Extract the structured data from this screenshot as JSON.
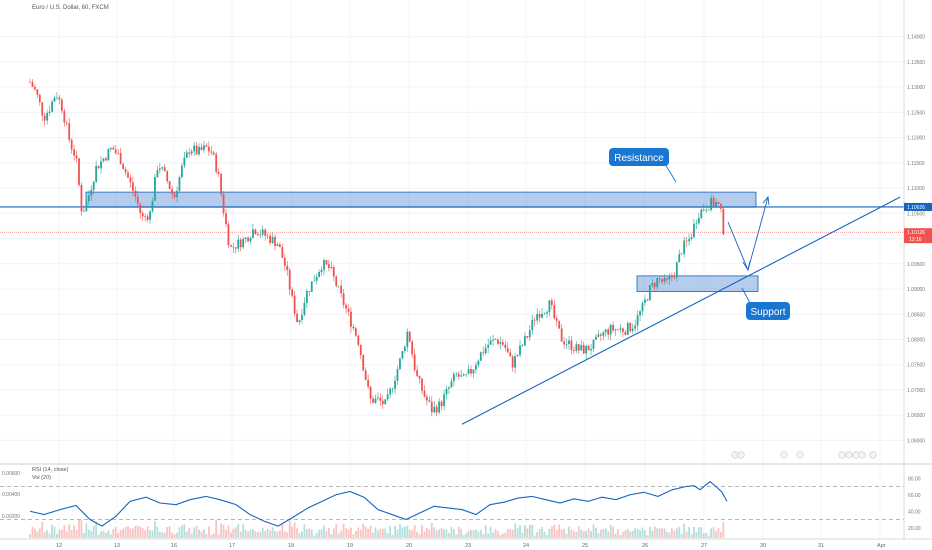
{
  "header": {
    "title": "Euro / U.S. Dollar, 60, FXCM"
  },
  "colors": {
    "up": "#26a69a",
    "down": "#ef5350",
    "zone_fill": "#5b8fd6",
    "zone_stroke": "#1565c0",
    "trend": "#1565c0",
    "callout": "#1976d2",
    "rsi_line": "#1565c0",
    "last_price": "#ef5350",
    "resistance_line": "#1565c0"
  },
  "chart_data": [
    {
      "type": "candlestick",
      "title": "Euro / U.S. Dollar, 60, FXCM",
      "x_ticks": [
        "12",
        "13",
        "16",
        "17",
        "18",
        "19",
        "20",
        "23",
        "24",
        "25",
        "26",
        "27",
        "30",
        "31",
        "Apr"
      ],
      "y_ticks": [
        "1.14000",
        "1.13500",
        "1.13000",
        "1.12500",
        "1.12000",
        "1.11500",
        "1.11000",
        "1.10500",
        "1.10000",
        "1.09500",
        "1.09000",
        "1.08500",
        "1.08000",
        "1.07500",
        "1.07000",
        "1.06500",
        "1.06000"
      ],
      "ylim": [
        1.0585,
        1.1433
      ],
      "close_path": [
        [
          0,
          1.131
        ],
        [
          6,
          1.129
        ],
        [
          14,
          1.124
        ],
        [
          20,
          1.126
        ],
        [
          26,
          1.129
        ],
        [
          32,
          1.126
        ],
        [
          40,
          1.119
        ],
        [
          46,
          1.116
        ],
        [
          52,
          1.105
        ],
        [
          58,
          1.108
        ],
        [
          66,
          1.114
        ],
        [
          74,
          1.116
        ],
        [
          82,
          1.118
        ],
        [
          90,
          1.116
        ],
        [
          98,
          1.112
        ],
        [
          106,
          1.108
        ],
        [
          112,
          1.104
        ],
        [
          120,
          1.105
        ],
        [
          128,
          1.115
        ],
        [
          136,
          1.112
        ],
        [
          144,
          1.108
        ],
        [
          152,
          1.114
        ],
        [
          160,
          1.118
        ],
        [
          168,
          1.117
        ],
        [
          176,
          1.118
        ],
        [
          182,
          1.117
        ],
        [
          188,
          1.113
        ],
        [
          194,
          1.105
        ],
        [
          200,
          1.098
        ],
        [
          208,
          1.099
        ],
        [
          216,
          1.1
        ],
        [
          224,
          1.102
        ],
        [
          232,
          1.101
        ],
        [
          240,
          1.1
        ],
        [
          248,
          1.099
        ],
        [
          256,
          1.094
        ],
        [
          262,
          1.088
        ],
        [
          268,
          1.083
        ],
        [
          276,
          1.089
        ],
        [
          284,
          1.092
        ],
        [
          292,
          1.095
        ],
        [
          300,
          1.094
        ],
        [
          308,
          1.09
        ],
        [
          316,
          1.086
        ],
        [
          322,
          1.083
        ],
        [
          328,
          1.08
        ],
        [
          334,
          1.074
        ],
        [
          340,
          1.068
        ],
        [
          348,
          1.068
        ],
        [
          356,
          1.067
        ],
        [
          364,
          1.072
        ],
        [
          372,
          1.077
        ],
        [
          378,
          1.082
        ],
        [
          386,
          1.073
        ],
        [
          394,
          1.069
        ],
        [
          402,
          1.066
        ],
        [
          410,
          1.067
        ],
        [
          418,
          1.07
        ],
        [
          426,
          1.073
        ],
        [
          434,
          1.072
        ],
        [
          442,
          1.074
        ],
        [
          450,
          1.077
        ],
        [
          458,
          1.079
        ],
        [
          466,
          1.08
        ],
        [
          474,
          1.079
        ],
        [
          482,
          1.075
        ],
        [
          490,
          1.078
        ],
        [
          498,
          1.081
        ],
        [
          506,
          1.085
        ],
        [
          514,
          1.086
        ],
        [
          520,
          1.087
        ],
        [
          526,
          1.083
        ],
        [
          532,
          1.08
        ],
        [
          540,
          1.079
        ],
        [
          548,
          1.078
        ],
        [
          556,
          1.078
        ],
        [
          564,
          1.079
        ],
        [
          572,
          1.081
        ],
        [
          580,
          1.082
        ],
        [
          588,
          1.082
        ],
        [
          596,
          1.082
        ],
        [
          604,
          1.083
        ],
        [
          612,
          1.086
        ],
        [
          620,
          1.09
        ],
        [
          628,
          1.092
        ],
        [
          636,
          1.091
        ],
        [
          644,
          1.093
        ],
        [
          652,
          1.098
        ],
        [
          660,
          1.1
        ],
        [
          668,
          1.105
        ],
        [
          674,
          1.106
        ],
        [
          680,
          1.107
        ],
        [
          686,
          1.107
        ],
        [
          690,
          1.106
        ],
        [
          694,
          1.101
        ]
      ],
      "resistance_zone": [
        1.1062,
        1.1092
      ],
      "resistance_level": "1.10626",
      "support_zone": [
        1.0895,
        1.0926
      ],
      "trendline": [
        [
          432,
          1.0632
        ],
        [
          870,
          1.1082
        ]
      ],
      "last_price": "1.10126",
      "countdown": "13:16",
      "annotations": [
        {
          "label": "Resistance"
        },
        {
          "label": "Support"
        }
      ]
    },
    {
      "type": "line",
      "title": "RSI (14, close)",
      "secondary_title": "Vol (20)",
      "y_ticks_right": [
        "80.00",
        "60.00",
        "40.00",
        "20.00"
      ],
      "y_ticks_left": [
        "0.00600",
        "0.00400",
        "0.00200"
      ],
      "ylim": [
        10,
        90
      ],
      "levels": [
        70,
        30
      ],
      "rsi_path": [
        [
          0,
          40
        ],
        [
          14,
          36
        ],
        [
          30,
          42
        ],
        [
          46,
          47
        ],
        [
          60,
          30
        ],
        [
          72,
          22
        ],
        [
          86,
          34
        ],
        [
          100,
          52
        ],
        [
          116,
          57
        ],
        [
          130,
          50
        ],
        [
          146,
          48
        ],
        [
          160,
          54
        ],
        [
          176,
          58
        ],
        [
          190,
          54
        ],
        [
          206,
          48
        ],
        [
          220,
          36
        ],
        [
          234,
          28
        ],
        [
          248,
          22
        ],
        [
          262,
          32
        ],
        [
          278,
          44
        ],
        [
          292,
          52
        ],
        [
          306,
          60
        ],
        [
          320,
          64
        ],
        [
          334,
          57
        ],
        [
          348,
          42
        ],
        [
          362,
          36
        ],
        [
          376,
          30
        ],
        [
          390,
          38
        ],
        [
          404,
          46
        ],
        [
          418,
          44
        ],
        [
          432,
          42
        ],
        [
          446,
          36
        ],
        [
          460,
          48
        ],
        [
          474,
          51
        ],
        [
          488,
          56
        ],
        [
          502,
          58
        ],
        [
          516,
          54
        ],
        [
          530,
          50
        ],
        [
          544,
          55
        ],
        [
          558,
          52
        ],
        [
          572,
          57
        ],
        [
          586,
          54
        ],
        [
          600,
          60
        ],
        [
          614,
          63
        ],
        [
          628,
          58
        ],
        [
          642,
          66
        ],
        [
          656,
          70
        ],
        [
          664,
          71
        ],
        [
          670,
          66
        ],
        [
          676,
          72
        ],
        [
          680,
          76
        ],
        [
          686,
          70
        ],
        [
          692,
          63
        ],
        [
          697,
          52
        ]
      ]
    }
  ]
}
